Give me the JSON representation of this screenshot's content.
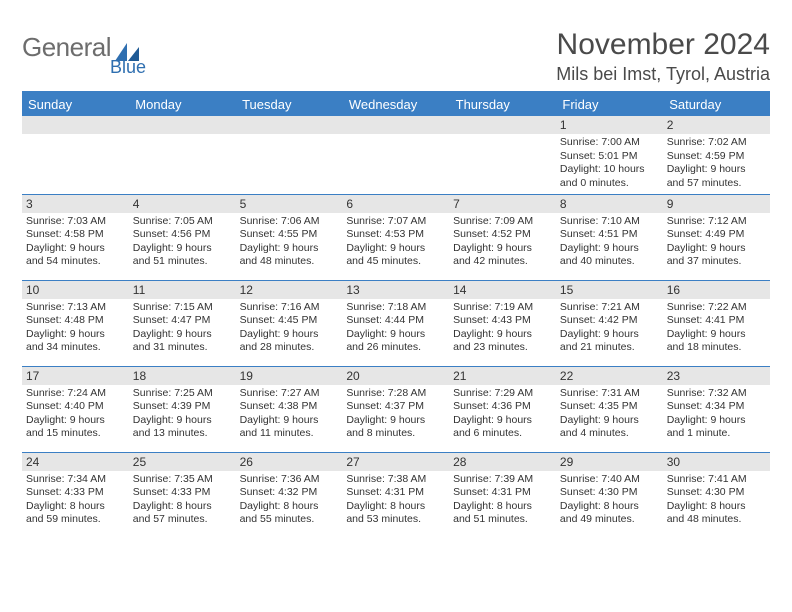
{
  "brand": {
    "name_gray": "General",
    "name_blue": "Blue"
  },
  "title": "November 2024",
  "location": "Mils bei Imst, Tyrol, Austria",
  "colors": {
    "header_blue": "#3b7fc4",
    "daynum_bg": "#e6e6e6",
    "text": "#333333",
    "brand_gray": "#6d6d6d",
    "brand_blue": "#2f6fb0",
    "background": "#ffffff"
  },
  "typography": {
    "title_fontsize": 30,
    "location_fontsize": 18,
    "header_fontsize": 13,
    "body_fontsize": 10.5
  },
  "day_headers": [
    "Sunday",
    "Monday",
    "Tuesday",
    "Wednesday",
    "Thursday",
    "Friday",
    "Saturday"
  ],
  "weeks": [
    [
      null,
      null,
      null,
      null,
      null,
      {
        "n": "1",
        "sunrise": "7:00 AM",
        "sunset": "5:01 PM",
        "day_h": "10",
        "day_m": "0"
      },
      {
        "n": "2",
        "sunrise": "7:02 AM",
        "sunset": "4:59 PM",
        "day_h": "9",
        "day_m": "57"
      }
    ],
    [
      {
        "n": "3",
        "sunrise": "7:03 AM",
        "sunset": "4:58 PM",
        "day_h": "9",
        "day_m": "54"
      },
      {
        "n": "4",
        "sunrise": "7:05 AM",
        "sunset": "4:56 PM",
        "day_h": "9",
        "day_m": "51"
      },
      {
        "n": "5",
        "sunrise": "7:06 AM",
        "sunset": "4:55 PM",
        "day_h": "9",
        "day_m": "48"
      },
      {
        "n": "6",
        "sunrise": "7:07 AM",
        "sunset": "4:53 PM",
        "day_h": "9",
        "day_m": "45"
      },
      {
        "n": "7",
        "sunrise": "7:09 AM",
        "sunset": "4:52 PM",
        "day_h": "9",
        "day_m": "42"
      },
      {
        "n": "8",
        "sunrise": "7:10 AM",
        "sunset": "4:51 PM",
        "day_h": "9",
        "day_m": "40"
      },
      {
        "n": "9",
        "sunrise": "7:12 AM",
        "sunset": "4:49 PM",
        "day_h": "9",
        "day_m": "37"
      }
    ],
    [
      {
        "n": "10",
        "sunrise": "7:13 AM",
        "sunset": "4:48 PM",
        "day_h": "9",
        "day_m": "34"
      },
      {
        "n": "11",
        "sunrise": "7:15 AM",
        "sunset": "4:47 PM",
        "day_h": "9",
        "day_m": "31"
      },
      {
        "n": "12",
        "sunrise": "7:16 AM",
        "sunset": "4:45 PM",
        "day_h": "9",
        "day_m": "28"
      },
      {
        "n": "13",
        "sunrise": "7:18 AM",
        "sunset": "4:44 PM",
        "day_h": "9",
        "day_m": "26"
      },
      {
        "n": "14",
        "sunrise": "7:19 AM",
        "sunset": "4:43 PM",
        "day_h": "9",
        "day_m": "23"
      },
      {
        "n": "15",
        "sunrise": "7:21 AM",
        "sunset": "4:42 PM",
        "day_h": "9",
        "day_m": "21"
      },
      {
        "n": "16",
        "sunrise": "7:22 AM",
        "sunset": "4:41 PM",
        "day_h": "9",
        "day_m": "18"
      }
    ],
    [
      {
        "n": "17",
        "sunrise": "7:24 AM",
        "sunset": "4:40 PM",
        "day_h": "9",
        "day_m": "15"
      },
      {
        "n": "18",
        "sunrise": "7:25 AM",
        "sunset": "4:39 PM",
        "day_h": "9",
        "day_m": "13"
      },
      {
        "n": "19",
        "sunrise": "7:27 AM",
        "sunset": "4:38 PM",
        "day_h": "9",
        "day_m": "11"
      },
      {
        "n": "20",
        "sunrise": "7:28 AM",
        "sunset": "4:37 PM",
        "day_h": "9",
        "day_m": "8"
      },
      {
        "n": "21",
        "sunrise": "7:29 AM",
        "sunset": "4:36 PM",
        "day_h": "9",
        "day_m": "6"
      },
      {
        "n": "22",
        "sunrise": "7:31 AM",
        "sunset": "4:35 PM",
        "day_h": "9",
        "day_m": "4"
      },
      {
        "n": "23",
        "sunrise": "7:32 AM",
        "sunset": "4:34 PM",
        "day_h": "9",
        "day_m": "1"
      }
    ],
    [
      {
        "n": "24",
        "sunrise": "7:34 AM",
        "sunset": "4:33 PM",
        "day_h": "8",
        "day_m": "59"
      },
      {
        "n": "25",
        "sunrise": "7:35 AM",
        "sunset": "4:33 PM",
        "day_h": "8",
        "day_m": "57"
      },
      {
        "n": "26",
        "sunrise": "7:36 AM",
        "sunset": "4:32 PM",
        "day_h": "8",
        "day_m": "55"
      },
      {
        "n": "27",
        "sunrise": "7:38 AM",
        "sunset": "4:31 PM",
        "day_h": "8",
        "day_m": "53"
      },
      {
        "n": "28",
        "sunrise": "7:39 AM",
        "sunset": "4:31 PM",
        "day_h": "8",
        "day_m": "51"
      },
      {
        "n": "29",
        "sunrise": "7:40 AM",
        "sunset": "4:30 PM",
        "day_h": "8",
        "day_m": "49"
      },
      {
        "n": "30",
        "sunrise": "7:41 AM",
        "sunset": "4:30 PM",
        "day_h": "8",
        "day_m": "48"
      }
    ]
  ],
  "labels": {
    "sunrise_prefix": "Sunrise: ",
    "sunset_prefix": "Sunset: ",
    "daylight_prefix": "Daylight: ",
    "hours_word": " hours",
    "and_word": "and ",
    "minutes_word": " minutes.",
    "minute_word": " minute."
  }
}
